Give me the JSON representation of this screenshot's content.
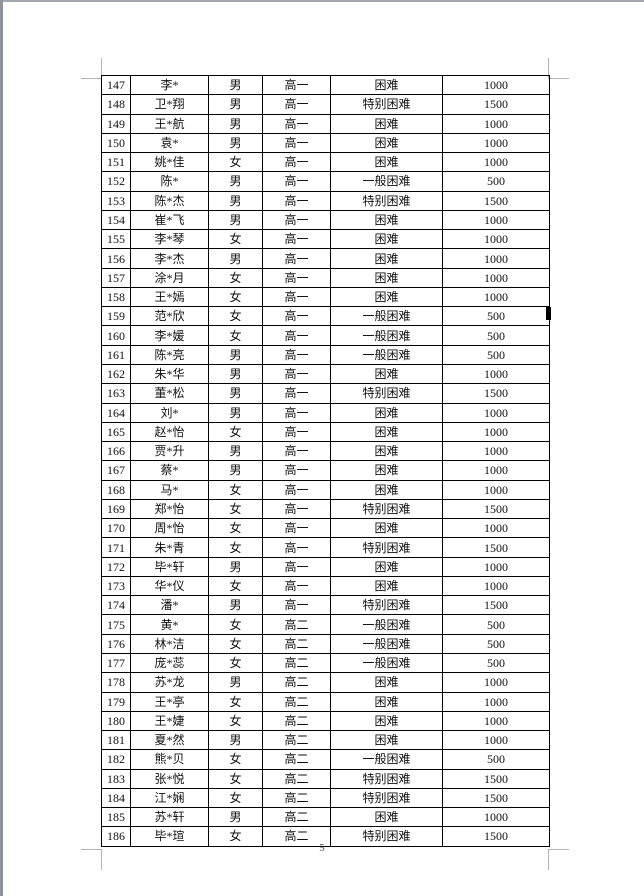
{
  "document": {
    "page_number": "5",
    "table": {
      "rows": [
        [
          "147",
          "李*",
          "男",
          "高一",
          "困难",
          "1000"
        ],
        [
          "148",
          "卫*翔",
          "男",
          "高一",
          "特别困难",
          "1500"
        ],
        [
          "149",
          "王*航",
          "男",
          "高一",
          "困难",
          "1000"
        ],
        [
          "150",
          "袁*",
          "男",
          "高一",
          "困难",
          "1000"
        ],
        [
          "151",
          "姚*佳",
          "女",
          "高一",
          "困难",
          "1000"
        ],
        [
          "152",
          "陈*",
          "男",
          "高一",
          "一般困难",
          "500"
        ],
        [
          "153",
          "陈*杰",
          "男",
          "高一",
          "特别困难",
          "1500"
        ],
        [
          "154",
          "崔*飞",
          "男",
          "高一",
          "困难",
          "1000"
        ],
        [
          "155",
          "李*琴",
          "女",
          "高一",
          "困难",
          "1000"
        ],
        [
          "156",
          "李*杰",
          "男",
          "高一",
          "困难",
          "1000"
        ],
        [
          "157",
          "涂*月",
          "女",
          "高一",
          "困难",
          "1000"
        ],
        [
          "158",
          "王*嫣",
          "女",
          "高一",
          "困难",
          "1000"
        ],
        [
          "159",
          "范*欣",
          "女",
          "高一",
          "一般困难",
          "500"
        ],
        [
          "160",
          "李*媛",
          "女",
          "高一",
          "一般困难",
          "500"
        ],
        [
          "161",
          "陈*亮",
          "男",
          "高一",
          "一般困难",
          "500"
        ],
        [
          "162",
          "朱*华",
          "男",
          "高一",
          "困难",
          "1000"
        ],
        [
          "163",
          "董*松",
          "男",
          "高一",
          "特别困难",
          "1500"
        ],
        [
          "164",
          "刘*",
          "男",
          "高一",
          "困难",
          "1000"
        ],
        [
          "165",
          "赵*怡",
          "女",
          "高一",
          "困难",
          "1000"
        ],
        [
          "166",
          "贾*升",
          "男",
          "高一",
          "困难",
          "1000"
        ],
        [
          "167",
          "蔡*",
          "男",
          "高一",
          "困难",
          "1000"
        ],
        [
          "168",
          "马*",
          "女",
          "高一",
          "困难",
          "1000"
        ],
        [
          "169",
          "郑*怡",
          "女",
          "高一",
          "特别困难",
          "1500"
        ],
        [
          "170",
          "周*怡",
          "女",
          "高一",
          "困难",
          "1000"
        ],
        [
          "171",
          "朱*青",
          "女",
          "高一",
          "特别困难",
          "1500"
        ],
        [
          "172",
          "毕*轩",
          "男",
          "高一",
          "困难",
          "1000"
        ],
        [
          "173",
          "华*仪",
          "女",
          "高一",
          "困难",
          "1000"
        ],
        [
          "174",
          "潘*",
          "男",
          "高一",
          "特别困难",
          "1500"
        ],
        [
          "175",
          "黄*",
          "女",
          "高二",
          "一般困难",
          "500"
        ],
        [
          "176",
          "林*洁",
          "女",
          "高二",
          "一般困难",
          "500"
        ],
        [
          "177",
          "庞*蕊",
          "女",
          "高二",
          "一般困难",
          "500"
        ],
        [
          "178",
          "苏*龙",
          "男",
          "高二",
          "困难",
          "1000"
        ],
        [
          "179",
          "王*亭",
          "女",
          "高二",
          "困难",
          "1000"
        ],
        [
          "180",
          "王*婕",
          "女",
          "高二",
          "困难",
          "1000"
        ],
        [
          "181",
          "夏*然",
          "男",
          "高二",
          "困难",
          "1000"
        ],
        [
          "182",
          "熊*贝",
          "女",
          "高二",
          "一般困难",
          "500"
        ],
        [
          "183",
          "张*悦",
          "女",
          "高二",
          "特别困难",
          "1500"
        ],
        [
          "184",
          "江*娴",
          "女",
          "高二",
          "特别困难",
          "1500"
        ],
        [
          "185",
          "苏*轩",
          "男",
          "高二",
          "困难",
          "1000"
        ],
        [
          "186",
          "毕*瑄",
          "女",
          "高二",
          "特别困难",
          "1500"
        ]
      ]
    }
  },
  "colors": {
    "table_border": "#000000",
    "crop_mark": "#b3b3b3",
    "page_edge_top": "#a3a7b1",
    "page_edge_left": "#8f939d",
    "cursor_marker": "#000000"
  }
}
